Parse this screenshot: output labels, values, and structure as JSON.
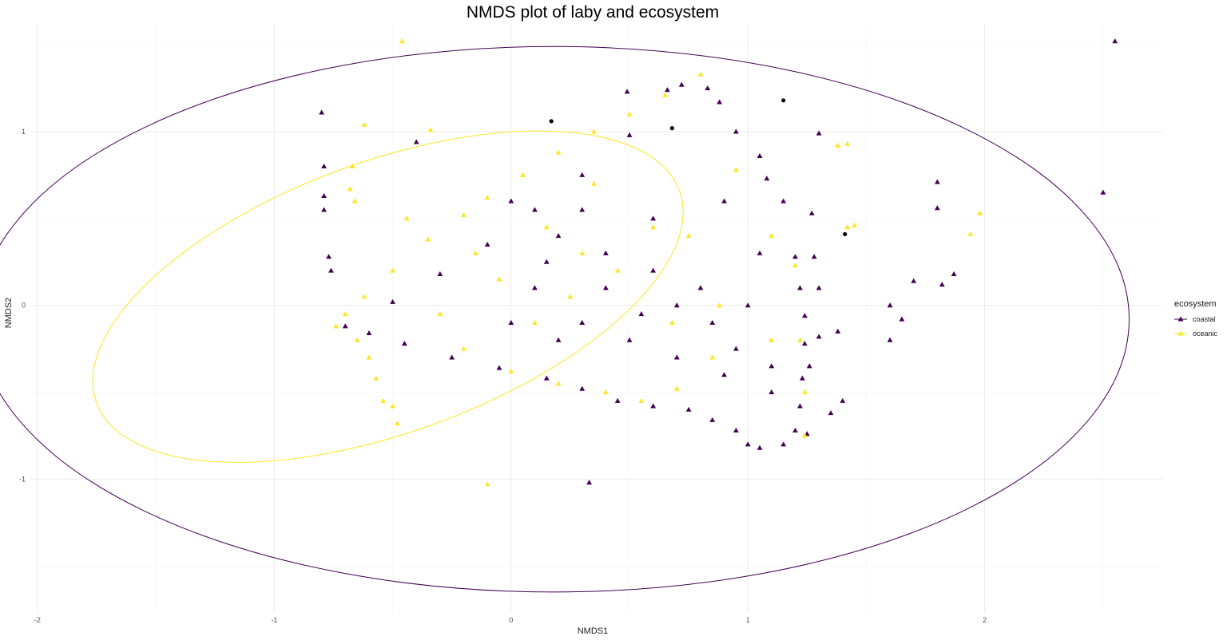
{
  "chart_data": {
    "type": "scatter",
    "title": "NMDS plot of laby and ecosystem",
    "xlabel": "NMDS1",
    "ylabel": "NMDS2",
    "xlim": [
      -2.03,
      2.75
    ],
    "ylim": [
      -1.77,
      1.62
    ],
    "xticks": [
      -2,
      -1,
      0,
      1,
      2
    ],
    "yticks": [
      -1,
      0,
      1
    ],
    "grid": true,
    "legend": {
      "title": "ecosystem",
      "position": "right",
      "entries": [
        {
          "name": "coastal",
          "color": "#440154"
        },
        {
          "name": "oceanic",
          "color": "#FDE725"
        }
      ]
    },
    "series": [
      {
        "name": "coastal",
        "color": "#440154",
        "marker": "triangle",
        "ellipse": {
          "cx": 0.18,
          "cy": -0.08,
          "rx": 2.43,
          "ry": 1.57
        },
        "points": [
          [
            -0.8,
            1.11
          ],
          [
            -0.79,
            0.8
          ],
          [
            -0.79,
            0.63
          ],
          [
            -0.79,
            0.55
          ],
          [
            -0.77,
            0.28
          ],
          [
            -0.76,
            0.2
          ],
          [
            -0.4,
            0.94
          ],
          [
            2.55,
            1.52
          ],
          [
            2.5,
            0.65
          ],
          [
            0.49,
            1.23
          ],
          [
            0.66,
            1.24
          ],
          [
            0.72,
            1.27
          ],
          [
            0.83,
            1.25
          ],
          [
            0.88,
            1.17
          ],
          [
            0.95,
            1.0
          ],
          [
            1.05,
            0.86
          ],
          [
            1.08,
            0.73
          ],
          [
            1.15,
            0.6
          ],
          [
            1.2,
            0.28
          ],
          [
            1.22,
            0.1
          ],
          [
            1.24,
            -0.06
          ],
          [
            1.24,
            -0.22
          ],
          [
            1.23,
            -0.42
          ],
          [
            1.22,
            -0.58
          ],
          [
            1.2,
            -0.72
          ],
          [
            1.25,
            -0.74
          ],
          [
            1.35,
            -0.62
          ],
          [
            1.4,
            -0.55
          ],
          [
            1.26,
            -0.35
          ],
          [
            1.3,
            -0.18
          ],
          [
            1.3,
            0.1
          ],
          [
            1.28,
            0.28
          ],
          [
            1.38,
            -0.15
          ],
          [
            1.0,
            -0.8
          ],
          [
            1.05,
            -0.82
          ],
          [
            1.15,
            -0.8
          ],
          [
            0.95,
            -0.72
          ],
          [
            0.85,
            -0.66
          ],
          [
            0.75,
            -0.6
          ],
          [
            0.6,
            -0.58
          ],
          [
            0.45,
            -0.55
          ],
          [
            0.3,
            -0.48
          ],
          [
            0.15,
            -0.42
          ],
          [
            -0.05,
            -0.36
          ],
          [
            -0.25,
            -0.3
          ],
          [
            -0.45,
            -0.22
          ],
          [
            -0.6,
            -0.16
          ],
          [
            -0.7,
            -0.12
          ],
          [
            -0.5,
            0.02
          ],
          [
            -0.3,
            0.18
          ],
          [
            -0.1,
            0.35
          ],
          [
            0.1,
            0.55
          ],
          [
            0.3,
            0.75
          ],
          [
            0.5,
            0.98
          ],
          [
            0.0,
            0.6
          ],
          [
            0.2,
            0.4
          ],
          [
            0.4,
            0.3
          ],
          [
            0.6,
            0.2
          ],
          [
            0.8,
            0.1
          ],
          [
            1.0,
            0.0
          ],
          [
            0.1,
            0.1
          ],
          [
            0.3,
            -0.1
          ],
          [
            0.5,
            -0.2
          ],
          [
            0.7,
            -0.3
          ],
          [
            0.9,
            -0.4
          ],
          [
            1.1,
            -0.5
          ],
          [
            0.0,
            -0.1
          ],
          [
            0.2,
            -0.2
          ],
          [
            0.6,
            0.5
          ],
          [
            0.9,
            0.6
          ],
          [
            0.7,
            0.0
          ],
          [
            0.4,
            0.1
          ],
          [
            1.05,
            0.3
          ],
          [
            0.85,
            -0.1
          ],
          [
            0.95,
            -0.25
          ],
          [
            0.3,
            0.55
          ],
          [
            0.15,
            0.25
          ],
          [
            0.55,
            -0.05
          ],
          [
            1.8,
            0.71
          ],
          [
            1.8,
            0.56
          ],
          [
            1.87,
            0.18
          ],
          [
            1.82,
            0.12
          ],
          [
            1.7,
            0.14
          ],
          [
            1.6,
            0.0
          ],
          [
            1.65,
            -0.08
          ],
          [
            1.6,
            -0.2
          ],
          [
            1.3,
            0.99
          ],
          [
            1.27,
            0.53
          ],
          [
            0.33,
            -1.02
          ],
          [
            1.1,
            -0.35
          ]
        ]
      },
      {
        "name": "oceanic",
        "color": "#FDE725",
        "marker": "triangle",
        "ellipse": {
          "cx": -0.52,
          "cy": 0.05,
          "rx": 1.31,
          "ry": 0.78,
          "angle": 20
        },
        "points": [
          [
            -0.46,
            1.52
          ],
          [
            -0.62,
            1.04
          ],
          [
            -0.67,
            0.8
          ],
          [
            -0.68,
            0.67
          ],
          [
            -0.66,
            0.6
          ],
          [
            -0.34,
            1.01
          ],
          [
            -0.44,
            0.5
          ],
          [
            0.8,
            1.33
          ],
          [
            0.65,
            1.21
          ],
          [
            0.5,
            1.1
          ],
          [
            0.35,
            1.0
          ],
          [
            0.2,
            0.88
          ],
          [
            0.05,
            0.75
          ],
          [
            -0.1,
            0.62
          ],
          [
            -0.2,
            0.52
          ],
          [
            -0.35,
            0.38
          ],
          [
            -0.5,
            0.2
          ],
          [
            -0.62,
            0.05
          ],
          [
            -0.7,
            -0.05
          ],
          [
            -0.74,
            -0.12
          ],
          [
            -0.65,
            -0.2
          ],
          [
            -0.6,
            -0.3
          ],
          [
            -0.57,
            -0.42
          ],
          [
            -0.54,
            -0.55
          ],
          [
            -0.5,
            -0.58
          ],
          [
            -0.48,
            -0.68
          ],
          [
            -0.1,
            -1.03
          ],
          [
            1.45,
            0.46
          ],
          [
            1.42,
            0.45
          ],
          [
            1.94,
            0.41
          ],
          [
            1.98,
            0.53
          ],
          [
            1.38,
            0.92
          ],
          [
            1.42,
            0.93
          ],
          [
            1.2,
            0.23
          ],
          [
            1.22,
            -0.2
          ],
          [
            1.24,
            -0.5
          ],
          [
            1.24,
            -0.75
          ],
          [
            0.88,
            -0.0
          ],
          [
            0.6,
            0.45
          ],
          [
            0.3,
            0.3
          ],
          [
            0.1,
            -0.1
          ],
          [
            -0.2,
            -0.25
          ],
          [
            0.0,
            -0.38
          ],
          [
            0.2,
            -0.45
          ],
          [
            0.4,
            -0.5
          ],
          [
            0.55,
            -0.55
          ],
          [
            0.7,
            -0.48
          ],
          [
            0.85,
            -0.3
          ],
          [
            1.1,
            -0.2
          ],
          [
            0.45,
            0.2
          ],
          [
            0.25,
            0.05
          ],
          [
            -0.05,
            0.15
          ],
          [
            0.15,
            0.45
          ],
          [
            0.35,
            0.7
          ],
          [
            0.75,
            0.4
          ],
          [
            0.95,
            0.78
          ],
          [
            1.1,
            0.4
          ],
          [
            0.68,
            -0.1
          ],
          [
            -0.3,
            -0.05
          ],
          [
            -0.15,
            0.3
          ]
        ]
      },
      {
        "name": "",
        "color": "#000000",
        "marker": "circle",
        "points": [
          [
            0.17,
            1.06
          ],
          [
            0.68,
            1.02
          ],
          [
            1.15,
            1.18
          ],
          [
            1.41,
            0.41
          ]
        ]
      }
    ]
  }
}
